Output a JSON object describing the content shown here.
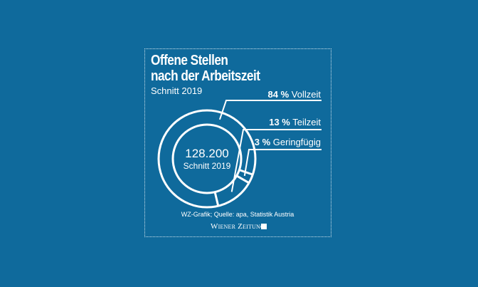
{
  "chart_data": {
    "type": "pie",
    "variant": "donut",
    "title_lines": [
      "Offene Stellen",
      "nach der Arbeitszeit"
    ],
    "subtitle": "Schnitt 2019",
    "center": {
      "value": "128.200",
      "label": "Schnitt 2019"
    },
    "slices": [
      {
        "label": "Vollzeit",
        "value": 84,
        "display": "84 %"
      },
      {
        "label": "Teilzeit",
        "value": 13,
        "display": "13 %"
      },
      {
        "label": "Geringfügig",
        "value": 3,
        "display": "3 %"
      }
    ],
    "unit": "%"
  },
  "footer": {
    "source": "WZ-Grafik; Quelle: apa, Statistik Austria",
    "brand": "Wiener Zeitung"
  },
  "colors": {
    "background": "#0f6a9c",
    "foreground": "#ffffff"
  }
}
